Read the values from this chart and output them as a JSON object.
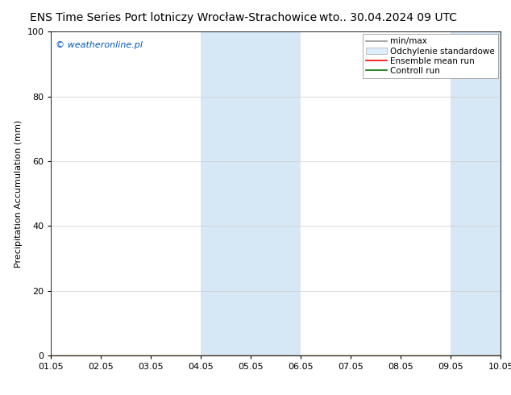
{
  "title_left": "ENS Time Series Port lotniczy Wrocław-Strachowice",
  "title_right": "wto.. 30.04.2024 09 UTC",
  "ylabel": "Precipitation Accumulation (mm)",
  "ylim": [
    0,
    100
  ],
  "yticks": [
    0,
    20,
    40,
    60,
    80,
    100
  ],
  "xtick_labels": [
    "01.05",
    "02.05",
    "03.05",
    "04.05",
    "05.05",
    "06.05",
    "07.05",
    "08.05",
    "09.05",
    "10.05"
  ],
  "shaded_regions": [
    {
      "xmin": 4,
      "xmax": 5,
      "color": "#d6e8f5"
    },
    {
      "xmin": 5,
      "xmax": 6,
      "color": "#d6e8f5"
    },
    {
      "xmin": 9,
      "xmax": 10,
      "color": "#d6e8f5"
    }
  ],
  "legend_labels": [
    "min/max",
    "Odchylenie standardowe",
    "Ensemble mean run",
    "Controll run"
  ],
  "legend_colors": [
    "#999999",
    "#cccccc",
    "#ff0000",
    "#007700"
  ],
  "watermark": "© weatheronline.pl",
  "watermark_color": "#0055bb",
  "background_color": "#ffffff",
  "plot_bg_color": "#ffffff",
  "title_fontsize": 10,
  "axis_fontsize": 8,
  "tick_fontsize": 8,
  "legend_fontsize": 7.5
}
